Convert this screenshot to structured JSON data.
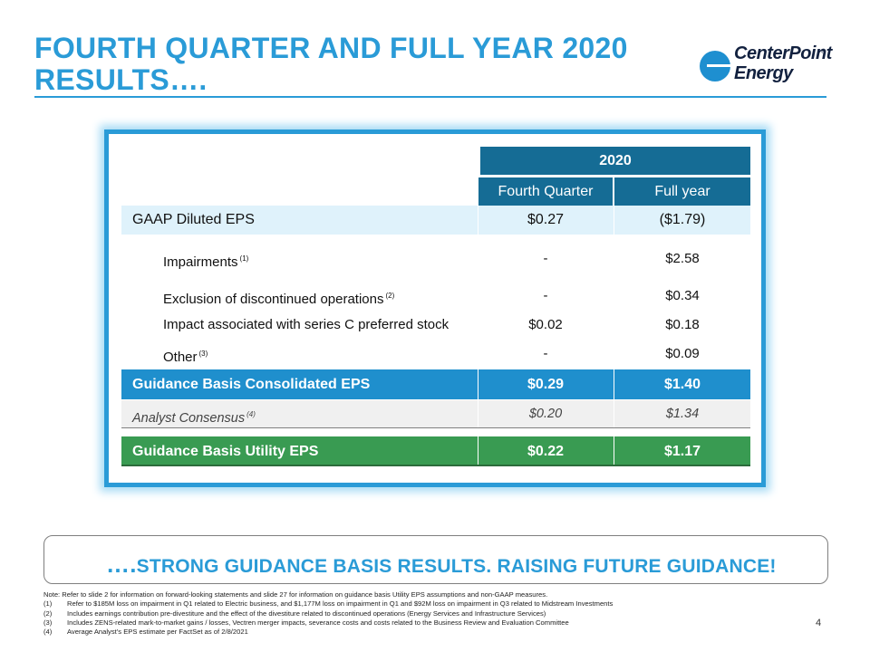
{
  "slide": {
    "title": "FOURTH QUARTER AND FULL YEAR 2020 RESULTS….",
    "logo_line1": "CenterPoint",
    "logo_line2": "Energy",
    "logo_mark": "®",
    "page_number": "4"
  },
  "table": {
    "year_header": "2020",
    "col1_header": "Fourth Quarter",
    "col2_header": "Full year",
    "gaap": {
      "label": "GAAP Diluted EPS",
      "q4": "$0.27",
      "fy": "($1.79)"
    },
    "adjustments": [
      {
        "label": "Impairments",
        "note": "(1)",
        "q4": "-",
        "fy": "$2.58"
      },
      {
        "label": "Exclusion of discontinued operations",
        "note": "(2)",
        "q4": "-",
        "fy": "$0.34"
      },
      {
        "label": "Impact associated with series C preferred stock",
        "note": "",
        "q4": "$0.02",
        "fy": "$0.18"
      },
      {
        "label": "Other",
        "note": "(3)",
        "q4": "-",
        "fy": "$0.09"
      }
    ],
    "guidance_consolidated": {
      "label": "Guidance Basis Consolidated EPS",
      "q4": "$0.29",
      "fy": "$1.40"
    },
    "analyst": {
      "label": "Analyst Consensus",
      "note": "(4)",
      "q4": "$0.20",
      "fy": "$1.34"
    },
    "guidance_utility": {
      "label": "Guidance Basis Utility EPS",
      "q4": "$0.22",
      "fy": "$1.17"
    }
  },
  "banner": {
    "dots": "….",
    "text": "STRONG GUIDANCE BASIS RESULTS. RAISING FUTURE GUIDANCE!"
  },
  "notes": {
    "intro": "Note: Refer to slide 2 for information on forward-looking statements and slide 27 for information on guidance basis Utility EPS assumptions and non-GAAP measures.",
    "items": [
      {
        "num": "(1)",
        "text": "Refer to $185M loss on impairment in Q1 related to Electric business, and $1,177M loss on impairment in Q1 and $92M loss on impairment in Q3 related to Midstream Investments"
      },
      {
        "num": "(2)",
        "text": "Includes earnings contribution pre-divestiture and the effect of the divestiture related to discontinued operations (Energy Services and Infrastructure Services)"
      },
      {
        "num": "(3)",
        "text": "Includes ZENS-related mark-to-market gains / losses, Vectren merger impacts, severance costs and costs related to the Business Review and Evaluation Committee"
      },
      {
        "num": "(4)",
        "text": "Average Analyst’s EPS estimate per FactSet as of 2/8/2021"
      }
    ]
  },
  "colors": {
    "accent": "#2a9bd7",
    "header_dark": "#156c95",
    "guidance_blue": "#1f8fcd",
    "utility_green": "#399b52",
    "gaap_bg": "#dff2fb"
  }
}
